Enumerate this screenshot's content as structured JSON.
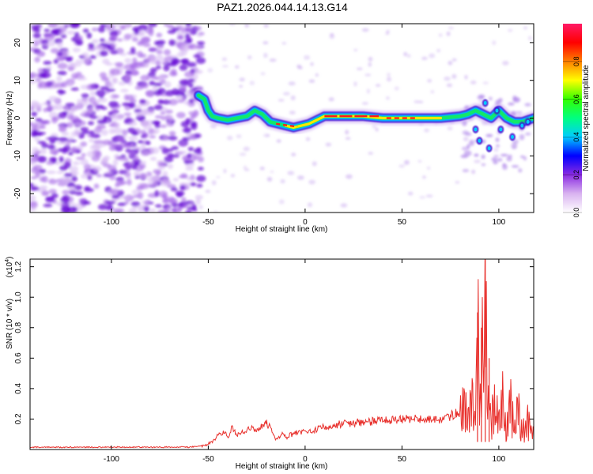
{
  "title": "PAZ1.2026.044.14.13.G14",
  "colors": {
    "plot_line": "#e8302c",
    "speckle": "#8a2be2",
    "axis": "#000000"
  },
  "colorbar": {
    "label": "Normalized spectral amplitude",
    "ticks": [
      "0.0",
      "0.2",
      "0.4",
      "0.6",
      "0.8"
    ],
    "range": [
      0,
      1
    ],
    "palette": "rainbow",
    "colors": [
      "#ffffff",
      "#d9b3f0",
      "#8a2be2",
      "#0000ff",
      "#00ccff",
      "#00ff80",
      "#33ff00",
      "#ffff00",
      "#ff8000",
      "#ff0000",
      "#ff1a66"
    ]
  },
  "chart_data": [
    {
      "type": "heatmap",
      "title": "PAZ1.2026.044.14.13.G14",
      "xlabel": "Height of straight line (km)",
      "ylabel": "Frequency (Hz)",
      "xlim": [
        -142,
        118
      ],
      "ylim": [
        -25,
        25
      ],
      "x_ticks": [
        -100,
        -50,
        0,
        50,
        100
      ],
      "y_ticks": [
        20,
        10,
        0,
        -10,
        -20
      ],
      "noise_region_x": [
        -142,
        -55
      ],
      "ridge": {
        "x": [
          -55,
          -52,
          -50,
          -48,
          -45,
          -40,
          -35,
          -30,
          -26,
          -22,
          -18,
          -14,
          -10,
          -6,
          -2,
          2,
          6,
          10,
          20,
          30,
          40,
          50,
          60,
          70,
          80,
          84,
          88,
          92,
          96,
          100,
          104,
          108,
          112,
          118
        ],
        "y": [
          6,
          5,
          2,
          0.5,
          0,
          -0.5,
          0,
          0.5,
          2,
          1,
          -1,
          -1.5,
          -2,
          -2.5,
          -2,
          -1.5,
          -0.5,
          0.5,
          0.5,
          0.5,
          0,
          0,
          0,
          0,
          0.5,
          1,
          2,
          1,
          0,
          2,
          0,
          -1,
          -1,
          0
        ],
        "peak_x": [
          -5,
          48
        ]
      }
    },
    {
      "type": "line",
      "xlabel": "Height of straight line (km)",
      "ylabel": "SNR (10 * v/v)",
      "multiplier_label": "(x10",
      "multiplier_exp": "4",
      "xlim": [
        -142,
        118
      ],
      "ylim": [
        0,
        1.25
      ],
      "x_ticks": [
        -100,
        -50,
        0,
        50,
        100
      ],
      "y_ticks": [
        0.2,
        0.4,
        0.6,
        0.8,
        1.0,
        1.2
      ],
      "series": [
        {
          "name": "SNR",
          "x": [
            -142,
            -120,
            -100,
            -80,
            -60,
            -52,
            -48,
            -45,
            -42,
            -40,
            -38,
            -35,
            -30,
            -28,
            -26,
            -22,
            -20,
            -18,
            -15,
            -12,
            -10,
            -5,
            0,
            5,
            10,
            20,
            30,
            40,
            50,
            60,
            70,
            75,
            80,
            82,
            84,
            86,
            88,
            89,
            90,
            91,
            92,
            93,
            94,
            95,
            96,
            98,
            100,
            102,
            104,
            106,
            108,
            110,
            112,
            114,
            116,
            118
          ],
          "values": [
            0.015,
            0.015,
            0.016,
            0.015,
            0.016,
            0.025,
            0.05,
            0.09,
            0.12,
            0.08,
            0.14,
            0.1,
            0.12,
            0.15,
            0.12,
            0.16,
            0.18,
            0.14,
            0.06,
            0.1,
            0.08,
            0.11,
            0.12,
            0.13,
            0.15,
            0.17,
            0.18,
            0.19,
            0.2,
            0.2,
            0.2,
            0.22,
            0.25,
            0.35,
            0.2,
            0.45,
            0.3,
            0.9,
            0.4,
            0.8,
            0.5,
            1.25,
            0.3,
            0.6,
            0.15,
            0.4,
            0.2,
            0.35,
            0.15,
            0.3,
            0.2,
            0.25,
            0.12,
            0.2,
            0.18,
            0.21
          ]
        }
      ]
    }
  ]
}
